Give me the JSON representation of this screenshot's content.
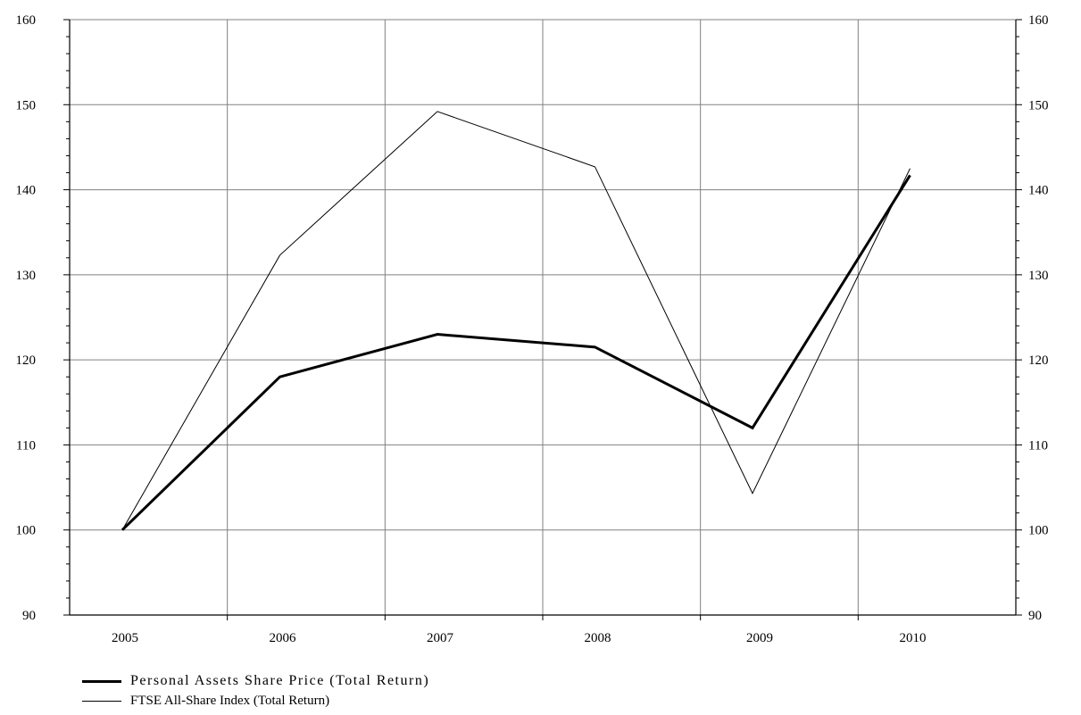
{
  "chart_data": {
    "type": "line",
    "categories": [
      "2005",
      "2006",
      "2007",
      "2008",
      "2009",
      "2010"
    ],
    "y_ticks_labeled": [
      90,
      100,
      110,
      120,
      130,
      140,
      150,
      160
    ],
    "ylim": [
      90,
      160
    ],
    "grid": true,
    "dual_y_axis": true,
    "legend_position": "bottom-left",
    "series": [
      {
        "name": "Personal Assets Share Price (Total Return)",
        "style": "thick",
        "color": "#000000",
        "values": [
          100.0,
          118.0,
          123.0,
          121.5,
          112.0,
          141.7
        ]
      },
      {
        "name": "FTSE All-Share Index (Total Return)",
        "style": "thin",
        "color": "#000000",
        "values": [
          100.0,
          132.3,
          149.2,
          142.7,
          104.3,
          142.5
        ]
      }
    ]
  }
}
